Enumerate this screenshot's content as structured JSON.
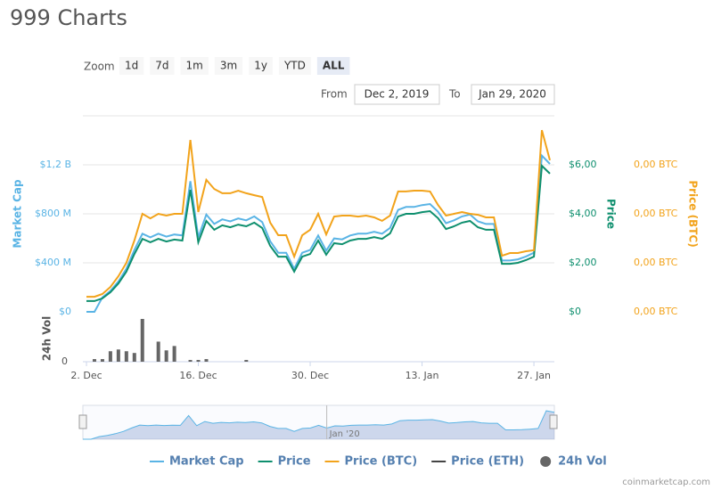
{
  "chart_data": {
    "type": "line",
    "title": "999 Charts",
    "zoom_label": "Zoom",
    "range_buttons": [
      "1d",
      "7d",
      "1m",
      "3m",
      "1y",
      "YTD",
      "ALL"
    ],
    "selected_range": 6,
    "from_label": "From",
    "from_value": "Dec 2, 2019",
    "to_label": "To",
    "to_value": "Jan 29, 2020",
    "y_label": "Market Cap",
    "y2_label": "Price",
    "y3_label": "Price (BTC)",
    "vol_label": "24h Vol",
    "credit": "coinmarketcap.com",
    "x": [
      "2019-12-02",
      "2019-12-03",
      "2019-12-04",
      "2019-12-05",
      "2019-12-06",
      "2019-12-07",
      "2019-12-08",
      "2019-12-09",
      "2019-12-10",
      "2019-12-11",
      "2019-12-12",
      "2019-12-13",
      "2019-12-14",
      "2019-12-15",
      "2019-12-16",
      "2019-12-17",
      "2019-12-18",
      "2019-12-19",
      "2019-12-20",
      "2019-12-21",
      "2019-12-22",
      "2019-12-23",
      "2019-12-24",
      "2019-12-25",
      "2019-12-26",
      "2019-12-27",
      "2019-12-28",
      "2019-12-29",
      "2019-12-30",
      "2019-12-31",
      "2020-01-01",
      "2020-01-02",
      "2020-01-03",
      "2020-01-04",
      "2020-01-05",
      "2020-01-06",
      "2020-01-07",
      "2020-01-08",
      "2020-01-09",
      "2020-01-10",
      "2020-01-11",
      "2020-01-12",
      "2020-01-13",
      "2020-01-14",
      "2020-01-15",
      "2020-01-16",
      "2020-01-17",
      "2020-01-18",
      "2020-01-19",
      "2020-01-20",
      "2020-01-21",
      "2020-01-22",
      "2020-01-23",
      "2020-01-24",
      "2020-01-25",
      "2020-01-26",
      "2020-01-27",
      "2020-01-28",
      "2020-01-29"
    ],
    "xlim": [
      "2019-12-02",
      "2020-01-29"
    ],
    "xticks": [
      {
        "value": "2019-12-02",
        "label": "2. Dec"
      },
      {
        "value": "2019-12-16",
        "label": "16. Dec"
      },
      {
        "value": "2019-12-30",
        "label": "30. Dec"
      },
      {
        "value": "2020-01-13",
        "label": "13. Jan"
      },
      {
        "value": "2020-01-27",
        "label": "27. Jan"
      }
    ],
    "navigator_ticks": [
      {
        "value": "2020-01-01",
        "label": "Jan '20"
      }
    ],
    "ylim": [
      0,
      1600
    ],
    "yticks": [
      {
        "value": 0,
        "label": "$0"
      },
      {
        "value": 400,
        "label": "$400 M"
      },
      {
        "value": 800,
        "label": "$800 M"
      },
      {
        "value": 1200,
        "label": "$1,2 B"
      }
    ],
    "y2lim": [
      0,
      8
    ],
    "y2ticks": [
      {
        "value": 0,
        "label": "$0"
      },
      {
        "value": 2,
        "label": "$2,00"
      },
      {
        "value": 4,
        "label": "$4,00"
      },
      {
        "value": 6,
        "label": "$6,00"
      }
    ],
    "y3lim": [
      0,
      0.001
    ],
    "y3ticks": [
      {
        "value": 0,
        "label": "0,00 BTC"
      },
      {
        "value": 0.00025,
        "label": "0,00 BTC"
      },
      {
        "value": 0.0005,
        "label": "0,00 BTC"
      },
      {
        "value": 0.00075,
        "label": "0,00 BTC"
      }
    ],
    "vol_ylim": [
      0,
      50
    ],
    "vol_yticks": [
      0
    ],
    "grid": true,
    "legend": "bottom",
    "series": [
      {
        "name": "Market Cap",
        "color": "#5ab4e5",
        "axis": "y",
        "values": [
          0,
          0,
          118,
          171,
          248,
          351,
          505,
          638,
          608,
          638,
          614,
          631,
          623,
          1066,
          608,
          794,
          717,
          755,
          738,
          762,
          747,
          779,
          732,
          576,
          482,
          482,
          351,
          482,
          505,
          623,
          499,
          599,
          591,
          623,
          638,
          638,
          653,
          638,
          685,
          832,
          856,
          856,
          871,
          880,
          817,
          723,
          747,
          779,
          794,
          738,
          717,
          717,
          419,
          419,
          428,
          452,
          482,
          1275,
          1207
        ]
      },
      {
        "name": "Price",
        "color": "#0e8f6e",
        "axis": "y2",
        "values": [
          0.44,
          0.44,
          0.55,
          0.8,
          1.16,
          1.64,
          2.36,
          2.98,
          2.84,
          2.98,
          2.87,
          2.95,
          2.91,
          4.98,
          2.84,
          3.71,
          3.35,
          3.53,
          3.45,
          3.56,
          3.49,
          3.64,
          3.42,
          2.69,
          2.25,
          2.25,
          1.64,
          2.25,
          2.36,
          2.91,
          2.33,
          2.8,
          2.76,
          2.91,
          2.98,
          2.98,
          3.05,
          2.98,
          3.2,
          3.89,
          4.0,
          4.0,
          4.07,
          4.11,
          3.82,
          3.38,
          3.49,
          3.64,
          3.71,
          3.45,
          3.35,
          3.35,
          1.96,
          1.96,
          2.0,
          2.11,
          2.25,
          5.96,
          5.64
        ]
      },
      {
        "name": "Price (BTC)",
        "color": "#f2a31b",
        "axis": "y3",
        "values": [
          7.7e-05,
          7.7e-05,
          9.1e-05,
          0.000127,
          0.000182,
          0.00025,
          0.000364,
          0.0005,
          0.000477,
          0.0005,
          0.000491,
          0.0005,
          0.0005,
          0.000877,
          0.000509,
          0.000673,
          0.000627,
          0.000605,
          0.000605,
          0.000618,
          0.000605,
          0.000595,
          0.000586,
          0.000455,
          0.000391,
          0.000391,
          0.000282,
          0.000391,
          0.000418,
          0.0005,
          0.000395,
          0.000486,
          0.000491,
          0.000491,
          0.000486,
          0.000491,
          0.000482,
          0.000464,
          0.000491,
          0.000614,
          0.000614,
          0.000618,
          0.000618,
          0.000614,
          0.000545,
          0.000491,
          0.0005,
          0.000509,
          0.0005,
          0.000495,
          0.000482,
          0.000482,
          0.000286,
          0.0003,
          0.0003,
          0.000309,
          0.000314,
          0.000927,
          0.000773
        ]
      },
      {
        "name": "Price (ETH)",
        "color": "#444444",
        "visible": false
      },
      {
        "name": "24h Vol",
        "color": "#666666",
        "axis": "vol",
        "type": "bar",
        "values": [
          0,
          3,
          3,
          12,
          14,
          12,
          10,
          49,
          0,
          23,
          13,
          18,
          0,
          2,
          2,
          3,
          0,
          0,
          0,
          0,
          2,
          0,
          0,
          0,
          0,
          0,
          0,
          0,
          0,
          0,
          0,
          0,
          0,
          0,
          0,
          0,
          0,
          0,
          0,
          0,
          0,
          0,
          0,
          0,
          0,
          0,
          0,
          0,
          0,
          0,
          0,
          0,
          0,
          0,
          0,
          0,
          0,
          0,
          0
        ]
      }
    ]
  }
}
